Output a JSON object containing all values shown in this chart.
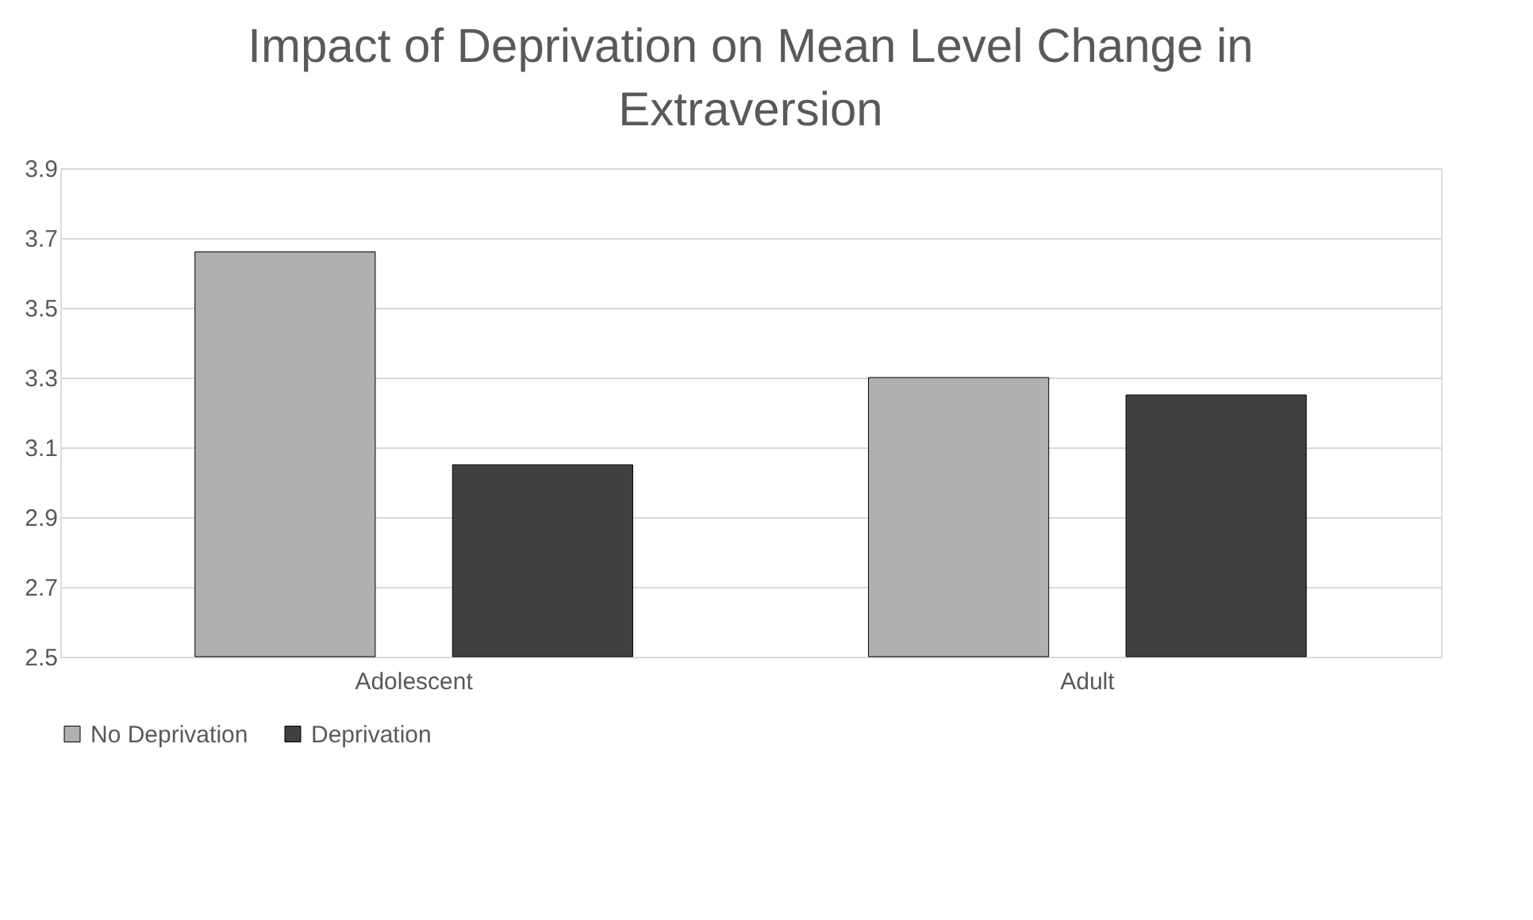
{
  "chart_data": {
    "type": "bar",
    "title": "Impact of Deprivation on Mean Level Change in Extraversion",
    "categories": [
      "Adolescent",
      "Adult"
    ],
    "series": [
      {
        "name": "No Deprivation",
        "color": "#b0b0b0",
        "values": [
          3.66,
          3.3
        ]
      },
      {
        "name": "Deprivation",
        "color": "#404040",
        "values": [
          3.05,
          3.25
        ]
      }
    ],
    "ylim": [
      2.5,
      3.9
    ],
    "yticks": [
      2.5,
      2.7,
      2.9,
      3.1,
      3.3,
      3.5,
      3.7,
      3.9
    ],
    "grid": "y",
    "legend": "bottom"
  }
}
